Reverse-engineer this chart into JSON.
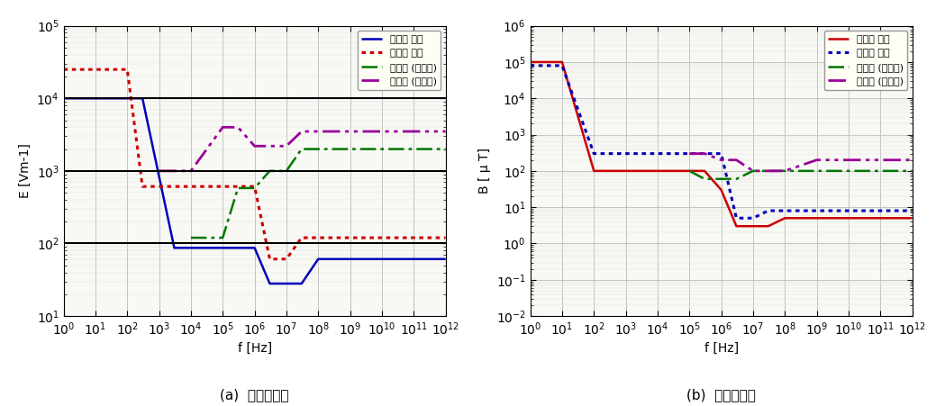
{
  "left_ylabel": "E [Vm-1]",
  "right_ylabel": "B [ μ T]",
  "xlabel": "f [Hz]",
  "caption_a": "(a)  전기장강도",
  "caption_b": "(b)  자기장강도",
  "bg_color": "#f8f8f4",
  "legend_bg": "#fffef5",
  "left": {
    "xlim": [
      1,
      1000000000000.0
    ],
    "ylim": [
      10.0,
      100000.0
    ],
    "hlines": [
      10000.0,
      1000.0,
      100.0
    ],
    "series": [
      {
        "label": "일반인 노출",
        "color": "#0000bb",
        "linestyle": "solid",
        "linewidth": 1.8,
        "x": [
          1,
          100.0,
          300.0,
          3000.0,
          10000.0,
          100000.0,
          300000.0,
          1000000.0,
          3000000.0,
          10000000.0,
          30000000.0,
          100000000.0,
          1000000000.0,
          10000000000.0,
          100000000000.0,
          1000000000000.0
        ],
        "y": [
          10000.0,
          10000.0,
          10000.0,
          87,
          87,
          87,
          87,
          87,
          28,
          28,
          28,
          61,
          61,
          61,
          61,
          61
        ]
      },
      {
        "label": "직업인 노출",
        "color": "#cc0000",
        "linestyle": "dotted",
        "linewidth": 2.2,
        "x": [
          1,
          10.0,
          100.0,
          300.0,
          3000.0,
          10000.0,
          100000.0,
          300000.0,
          1000000.0,
          3000000.0,
          10000000.0,
          30000000.0,
          100000000.0,
          1000000000.0,
          10000000000.0,
          100000000000.0,
          1000000000000.0
        ],
        "y": [
          25000.0,
          25000.0,
          25000.0,
          610,
          610,
          610,
          610,
          610,
          610,
          61,
          61,
          120,
          120,
          120,
          120,
          120,
          120
        ]
      },
      {
        "label": "참투치 (일반인)",
        "color": "#007700",
        "linestyle": "dashdot",
        "linewidth": 1.8,
        "x": [
          10000.0,
          100000.0,
          300000.0,
          1000000.0,
          3000000.0,
          10000000.0,
          30000000.0,
          100000000.0,
          1000000000.0,
          10000000000.0,
          100000000000.0,
          1000000000000.0
        ],
        "y": [
          120,
          120,
          580,
          580,
          1000,
          1000,
          2000,
          2000,
          2000,
          2000,
          2000,
          2000
        ]
      },
      {
        "label": "참투치 (직업인)",
        "color": "#990099",
        "linestyle": "dashdotdot",
        "linewidth": 2.0,
        "x": [
          1000.0,
          10000.0,
          100000.0,
          300000.0,
          1000000.0,
          3000000.0,
          10000000.0,
          30000000.0,
          100000000.0,
          1000000000.0,
          10000000000.0,
          100000000000.0,
          1000000000000.0
        ],
        "y": [
          1000,
          1000,
          4000,
          4000,
          2200,
          2200,
          2200,
          3500,
          3500,
          3500,
          3500,
          3500,
          3500
        ]
      }
    ]
  },
  "right": {
    "xlim": [
      1,
      1000000000000.0
    ],
    "ylim": [
      0.01,
      1000000.0
    ],
    "series": [
      {
        "label": "일반인 노출",
        "color": "#cc0000",
        "linestyle": "solid",
        "linewidth": 1.8,
        "x": [
          1,
          2,
          10.0,
          100.0,
          1000.0,
          10000.0,
          100000.0,
          300000.0,
          1000000.0,
          3000000.0,
          10000000.0,
          30000000.0,
          100000000.0,
          1000000000.0,
          10000000000.0,
          100000000000.0,
          1000000000000.0
        ],
        "y": [
          100000.0,
          100000.0,
          100000.0,
          100,
          100,
          100,
          100,
          100,
          30,
          3,
          3,
          3,
          5,
          5,
          5,
          5,
          5
        ]
      },
      {
        "label": "직업인 노출",
        "color": "#0000bb",
        "linestyle": "dotted",
        "linewidth": 2.2,
        "x": [
          1,
          2,
          10.0,
          100.0,
          1000.0,
          10000.0,
          100000.0,
          300000.0,
          1000000.0,
          3000000.0,
          10000000.0,
          30000000.0,
          100000000.0,
          1000000000.0,
          10000000000.0,
          100000000000.0,
          1000000000000.0
        ],
        "y": [
          80000.0,
          80000.0,
          80000.0,
          300,
          300,
          300,
          300,
          300,
          300,
          5,
          5,
          8,
          8,
          8,
          8,
          8,
          8
        ]
      },
      {
        "label": "참투치 (일반인)",
        "color": "#007700",
        "linestyle": "dashdot",
        "linewidth": 1.8,
        "x": [
          100000.0,
          300000.0,
          1000000.0,
          3000000.0,
          10000000.0,
          30000000.0,
          100000000.0,
          1000000000.0,
          10000000000.0,
          100000000000.0,
          1000000000000.0
        ],
        "y": [
          100,
          60,
          60,
          60,
          100,
          100,
          100,
          100,
          100,
          100,
          100
        ]
      },
      {
        "label": "참투치 (직업인)",
        "color": "#990099",
        "linestyle": "dashdotdot",
        "linewidth": 2.0,
        "x": [
          100000.0,
          300000.0,
          1000000.0,
          3000000.0,
          10000000.0,
          30000000.0,
          100000000.0,
          1000000000.0,
          10000000000.0,
          100000000000.0,
          1000000000000.0
        ],
        "y": [
          300,
          300,
          200,
          200,
          100,
          100,
          100,
          200,
          200,
          200,
          200
        ]
      }
    ]
  }
}
